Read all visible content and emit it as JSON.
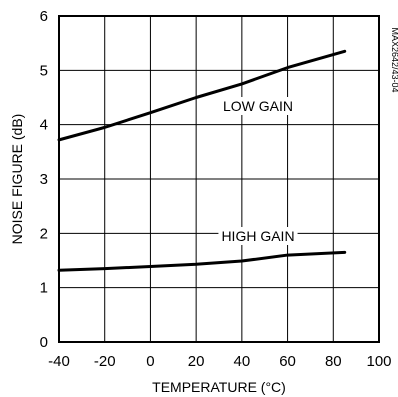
{
  "chart_data": {
    "type": "line",
    "xlabel": "TEMPERATURE (°C)",
    "ylabel": "NOISE FIGURE (dB)",
    "xlim": [
      -40,
      100
    ],
    "ylim": [
      0,
      6
    ],
    "x_ticks": [
      "-40",
      "-20",
      "0",
      "20",
      "40",
      "60",
      "80",
      "100"
    ],
    "y_ticks": [
      "0",
      "1",
      "2",
      "3",
      "4",
      "5",
      "6"
    ],
    "grid": true,
    "side_note": "MAX2642/43-04",
    "series": [
      {
        "name": "LOW GAIN",
        "x": [
          -40,
          -20,
          0,
          20,
          40,
          60,
          85
        ],
        "y": [
          3.72,
          3.95,
          4.22,
          4.5,
          4.75,
          5.05,
          5.35
        ]
      },
      {
        "name": "HIGH GAIN",
        "x": [
          -40,
          -20,
          0,
          20,
          40,
          60,
          85
        ],
        "y": [
          1.32,
          1.35,
          1.39,
          1.43,
          1.49,
          1.6,
          1.65
        ]
      }
    ]
  }
}
